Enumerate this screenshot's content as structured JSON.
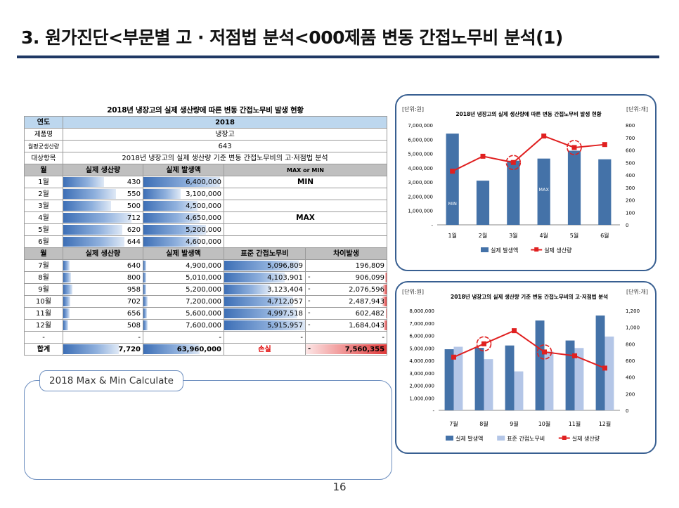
{
  "title": "3. 원가진단<부문별 고 · 저점법 분석<000제품 변동 간접노무비 분석(1)",
  "page_number": "16",
  "table": {
    "caption": "2018년 냉장고의 실제 생산량에 따른 변동 간접노무비 발생 현황",
    "info": {
      "year_label": "연도",
      "year_value": "2018",
      "product_label": "제품명",
      "product_value": "냉장고",
      "avg_label": "월평균생산량",
      "avg_value": "643",
      "target_label": "대상항목",
      "target_value": "2018년 냉장고의 실제 생산량 기준 변동 간접노무비의 고·저점법 분석"
    },
    "header1": {
      "month": "월",
      "qty": "실제 생산량",
      "cost": "실제 발생액",
      "mm": "MAX or MIN"
    },
    "rows1": [
      {
        "month": "1월",
        "qty": "430",
        "qty_num": 430,
        "cost": "6,400,000",
        "cost_num": 6400000,
        "mm": "MIN"
      },
      {
        "month": "2월",
        "qty": "550",
        "qty_num": 550,
        "cost": "3,100,000",
        "cost_num": 3100000,
        "mm": ""
      },
      {
        "month": "3월",
        "qty": "500",
        "qty_num": 500,
        "cost": "4,500,000",
        "cost_num": 4500000,
        "mm": ""
      },
      {
        "month": "4월",
        "qty": "712",
        "qty_num": 712,
        "cost": "4,650,000",
        "cost_num": 4650000,
        "mm": "MAX"
      },
      {
        "month": "5월",
        "qty": "620",
        "qty_num": 620,
        "cost": "5,200,000",
        "cost_num": 5200000,
        "mm": ""
      },
      {
        "month": "6월",
        "qty": "644",
        "qty_num": 644,
        "cost": "4,600,000",
        "cost_num": 4600000,
        "mm": ""
      }
    ],
    "header2": {
      "month": "월",
      "qty": "실제 생산량",
      "cost": "실제 발생액",
      "std": "표준 간접노무비",
      "diff": "차이발생"
    },
    "rows2": [
      {
        "month": "7월",
        "qty": "640",
        "qty_num": 640,
        "cost": "4,900,000",
        "cost_num": 4900000,
        "std": "5,096,809",
        "std_num": 5096809,
        "dash": "",
        "diff": "196,809",
        "diff_num": 196809
      },
      {
        "month": "8월",
        "qty": "800",
        "qty_num": 800,
        "cost": "5,010,000",
        "cost_num": 5010000,
        "std": "4,103,901",
        "std_num": 4103901,
        "dash": "-",
        "diff": "906,099",
        "diff_num": 906099
      },
      {
        "month": "9월",
        "qty": "958",
        "qty_num": 958,
        "cost": "5,200,000",
        "cost_num": 5200000,
        "std": "3,123,404",
        "std_num": 3123404,
        "dash": "-",
        "diff": "2,076,596",
        "diff_num": 2076596
      },
      {
        "month": "10월",
        "qty": "702",
        "qty_num": 702,
        "cost": "7,200,000",
        "cost_num": 7200000,
        "std": "4,712,057",
        "std_num": 4712057,
        "dash": "-",
        "diff": "2,487,943",
        "diff_num": 2487943
      },
      {
        "month": "11월",
        "qty": "656",
        "qty_num": 656,
        "cost": "5,600,000",
        "cost_num": 5600000,
        "std": "4,997,518",
        "std_num": 4997518,
        "dash": "-",
        "diff": "602,482",
        "diff_num": 602482
      },
      {
        "month": "12월",
        "qty": "508",
        "qty_num": 508,
        "cost": "7,600,000",
        "cost_num": 7600000,
        "std": "5,915,957",
        "std_num": 5915957,
        "dash": "-",
        "diff": "1,684,043",
        "diff_num": 1684043
      }
    ],
    "blank_row": {
      "month": "-",
      "qty": "-",
      "cost": "-",
      "std": "-",
      "diff": "-"
    },
    "total": {
      "label": "합계",
      "qty": "7,720",
      "qty_num": 7720,
      "cost": "63,960,000",
      "cost_num": 63960000,
      "std": "손실",
      "dash": "-",
      "diff": "7,560,355",
      "diff_num": 7560355
    },
    "colors": {
      "bar_blue": "#3d6fb6",
      "bar_red": "#e03a3a",
      "header_gray": "#bfbfbf",
      "year_blue": "#bdd7ee"
    }
  },
  "calc_box": {
    "label": "2018 Max & Min Calculate"
  },
  "chart_data": [
    {
      "type": "bar",
      "title": "2018년 냉장고의 실제 생산량에 따른 변동 간접노무비 발생 현황",
      "left_unit": "[단위:원]",
      "right_unit": "[단위:개]",
      "categories": [
        "1월",
        "2월",
        "3월",
        "4월",
        "5월",
        "6월"
      ],
      "y_ticks": [
        "-",
        "1,000,000",
        "2,000,000",
        "3,000,000",
        "4,000,000",
        "5,000,000",
        "6,000,000",
        "7,000,000"
      ],
      "y2_ticks": [
        "0",
        "100",
        "200",
        "300",
        "400",
        "500",
        "600",
        "700",
        "800"
      ],
      "ylim": [
        0,
        7000000
      ],
      "y2lim": [
        0,
        800
      ],
      "series": [
        {
          "name": "실제 발생액",
          "kind": "bar",
          "axis": "left",
          "color": "#4472a8",
          "values": [
            6400000,
            3100000,
            4500000,
            4650000,
            5200000,
            4600000
          ]
        },
        {
          "name": "실제 생산량",
          "kind": "line",
          "axis": "right",
          "color": "#e02020",
          "values": [
            430,
            550,
            500,
            712,
            620,
            644
          ]
        }
      ],
      "bar_labels": [
        {
          "index": 0,
          "text": "MIN"
        },
        {
          "index": 3,
          "text": "MAX"
        }
      ],
      "highlight_circles": [
        2,
        4
      ],
      "legend": "bottom"
    },
    {
      "type": "bar",
      "title": "2018년 냉장고의 실제 생산량 기준 변동 간접노무비의 고·저점법 분석",
      "left_unit": "[단위:원]",
      "right_unit": "[단위:개]",
      "categories": [
        "7월",
        "8월",
        "9월",
        "10월",
        "11월",
        "12월"
      ],
      "y_ticks": [
        "-",
        "1,000,000",
        "2,000,000",
        "3,000,000",
        "4,000,000",
        "5,000,000",
        "6,000,000",
        "7,000,000",
        "8,000,000"
      ],
      "y2_ticks": [
        "0",
        "200",
        "400",
        "600",
        "800",
        "1,000",
        "1,200"
      ],
      "ylim": [
        0,
        8000000
      ],
      "y2lim": [
        0,
        1200
      ],
      "series": [
        {
          "name": "실제 발생액",
          "kind": "bar",
          "axis": "left",
          "color": "#4472a8",
          "values": [
            4900000,
            5010000,
            5200000,
            7200000,
            5600000,
            7600000
          ]
        },
        {
          "name": "표준 간접노무비",
          "kind": "bar",
          "axis": "left",
          "color": "#b4c6e7",
          "values": [
            5096809,
            4103901,
            3123404,
            4712057,
            4997518,
            5915957
          ]
        },
        {
          "name": "실제 생산량",
          "kind": "line",
          "axis": "right",
          "color": "#e02020",
          "values": [
            640,
            800,
            958,
            702,
            656,
            508
          ]
        }
      ],
      "bar_labels": [],
      "highlight_circles": [
        1,
        3
      ],
      "legend": "bottom"
    }
  ]
}
